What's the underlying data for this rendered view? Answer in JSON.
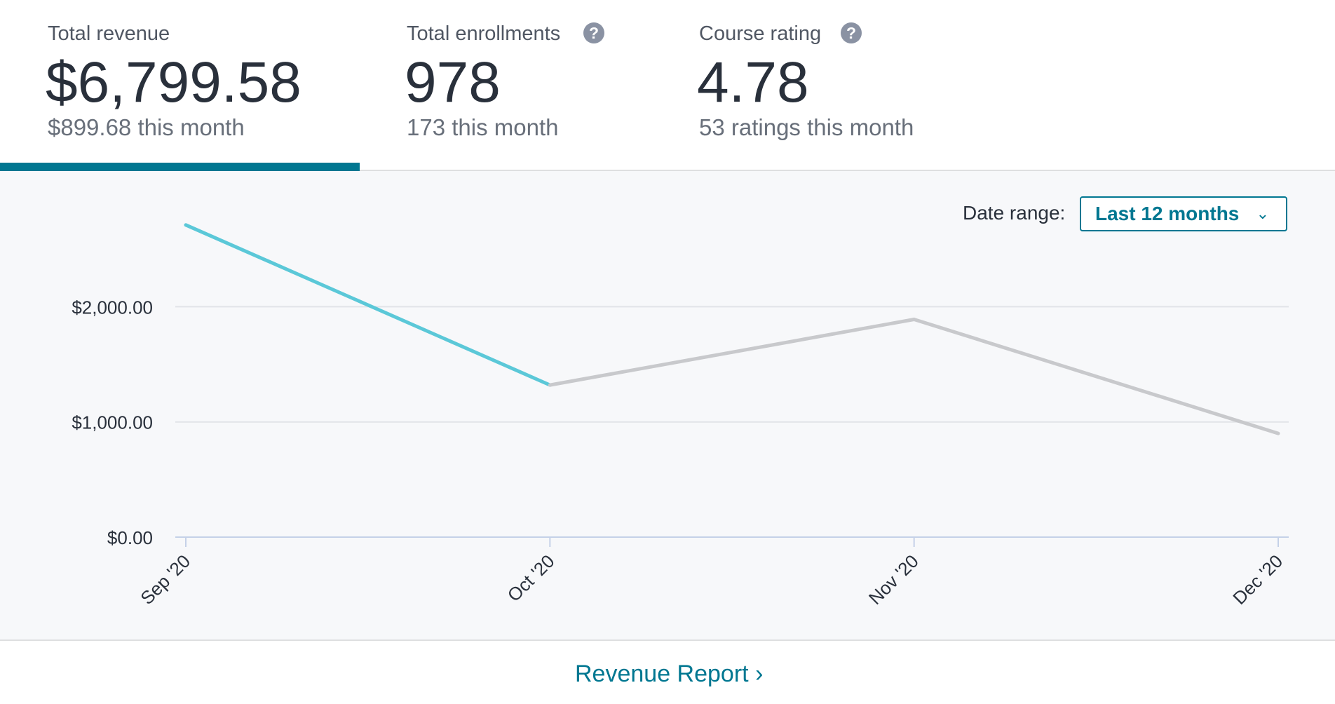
{
  "stats": [
    {
      "label": "Total revenue",
      "value": "$6,799.58",
      "sub": "$899.68 this month",
      "active": true
    },
    {
      "label": "Total enrollments",
      "value": "978",
      "sub": "173 this month",
      "help_icon": "question-circle-icon"
    },
    {
      "label": "Course rating",
      "value": "4.78",
      "sub": "53 ratings this month",
      "help_icon": "question-circle-icon"
    }
  ],
  "date_range": {
    "label": "Date range:",
    "selected": "Last 12 months",
    "chevron_icon": "chevron-down-icon"
  },
  "footer": {
    "report_link": "Revenue Report",
    "chevron_icon": "chevron-right-icon"
  },
  "colors": {
    "accent": "#007791",
    "line_highlight": "#5bc8d8",
    "line_rest": "#c8c9cc",
    "grid": "#e2e4e8",
    "axis": "#c5d1e8"
  },
  "chart_data": {
    "type": "line",
    "categories": [
      "Sep '20",
      "Oct '20",
      "Nov '20",
      "Dec '20"
    ],
    "series": [
      {
        "values": [
          2710,
          1320,
          1890,
          900
        ]
      }
    ],
    "highlight_segment": [
      0,
      1
    ],
    "yticks": [
      0,
      1000,
      2000
    ],
    "ytick_labels": [
      "$0.00",
      "$1,000.00",
      "$2,000.00"
    ],
    "ylim": [
      0,
      2800
    ],
    "grid": true
  }
}
